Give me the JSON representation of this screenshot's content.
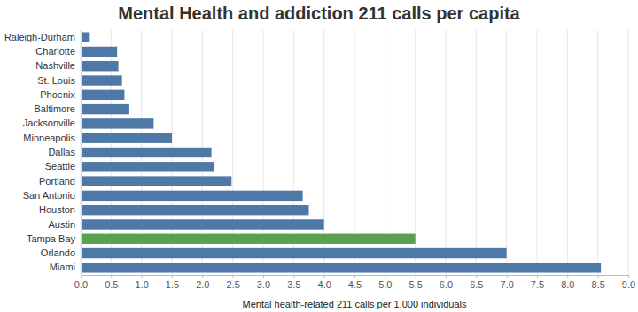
{
  "chart_data": {
    "type": "bar",
    "orientation": "horizontal",
    "title": "Mental Health and addiction 211 calls per capita",
    "x_label": "Mental health-related 211 calls per 1,000 individuals",
    "categories": [
      "Raleigh-Durham",
      "Charlotte",
      "Nashville",
      "St. Louis",
      "Phoenix",
      "Baltimore",
      "Jacksonville",
      "Minneapolis",
      "Dallas",
      "Seattle",
      "Portland",
      "San Antonio",
      "Houston",
      "Austin",
      "Tampa Bay",
      "Orlando",
      "Miami"
    ],
    "values": [
      0.15,
      0.6,
      0.62,
      0.68,
      0.72,
      0.8,
      1.2,
      1.5,
      2.15,
      2.2,
      2.48,
      3.65,
      3.75,
      4.0,
      5.5,
      7.0,
      8.55
    ],
    "colors": [
      "#4e79a7",
      "#4e79a7",
      "#4e79a7",
      "#4e79a7",
      "#4e79a7",
      "#4e79a7",
      "#4e79a7",
      "#4e79a7",
      "#4e79a7",
      "#4e79a7",
      "#4e79a7",
      "#4e79a7",
      "#4e79a7",
      "#4e79a7",
      "#59a14f",
      "#4e79a7",
      "#4e79a7"
    ],
    "xlim": [
      0,
      9
    ],
    "xticks": [
      {
        "value": 0,
        "label": "0.0"
      },
      {
        "value": 0.5,
        "label": "0.5"
      },
      {
        "value": 1,
        "label": "1.0"
      },
      {
        "value": 1.5,
        "label": "1.5"
      },
      {
        "value": 2,
        "label": "2.0"
      },
      {
        "value": 2.5,
        "label": "2.5"
      },
      {
        "value": 3,
        "label": "3.0"
      },
      {
        "value": 3.5,
        "label": "3.5"
      },
      {
        "value": 4,
        "label": "4.0"
      },
      {
        "value": 4.5,
        "label": "4.5"
      },
      {
        "value": 5,
        "label": "5.0"
      },
      {
        "value": 5.5,
        "label": "5.5"
      },
      {
        "value": 6,
        "label": "6.0"
      },
      {
        "value": 6.5,
        "label": "6.5"
      },
      {
        "value": 7,
        "label": "7.0"
      },
      {
        "value": 7.5,
        "label": "7.5"
      },
      {
        "value": 8,
        "label": "8.0"
      },
      {
        "value": 8.5,
        "label": "8.5"
      },
      {
        "value": 9,
        "label": "9.0"
      }
    ],
    "grid": true
  }
}
